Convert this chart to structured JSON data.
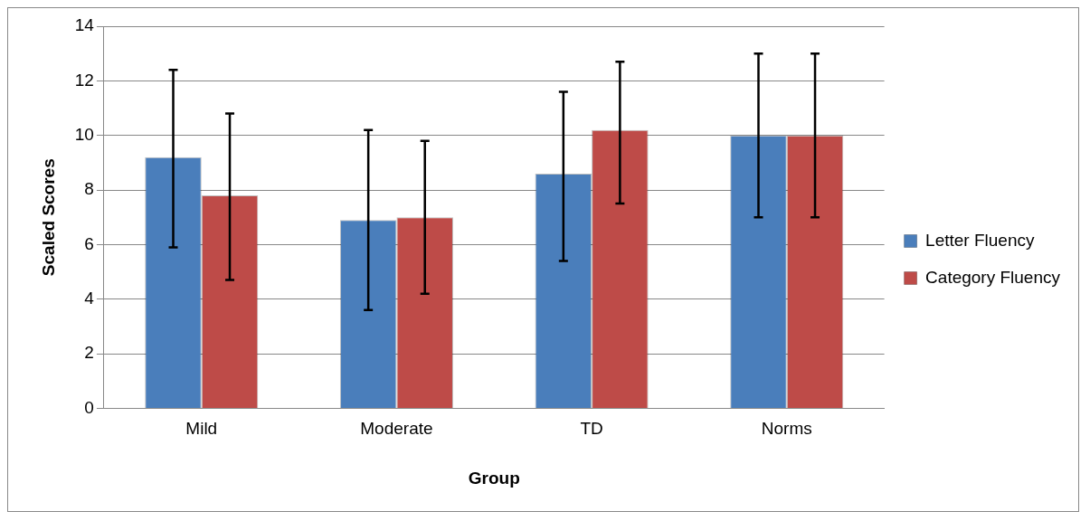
{
  "chart_data": {
    "type": "bar",
    "xlabel": "Group",
    "ylabel": "Scaled Scores",
    "categories": [
      "Mild",
      "Moderate",
      "TD",
      "Norms"
    ],
    "series": [
      {
        "name": "Letter Fluency",
        "color": "#4a7ebb",
        "values": [
          9.2,
          6.9,
          8.6,
          10
        ],
        "errors": [
          [
            5.9,
            12.4
          ],
          [
            3.6,
            10.2
          ],
          [
            5.4,
            11.6
          ],
          [
            7,
            13
          ]
        ]
      },
      {
        "name": "Category Fluency",
        "color": "#be4b48",
        "values": [
          7.8,
          7.0,
          10.2,
          10
        ],
        "errors": [
          [
            4.7,
            10.8
          ],
          [
            4.2,
            9.8
          ],
          [
            7.5,
            12.7
          ],
          [
            7,
            13
          ]
        ]
      }
    ],
    "ylim": [
      0,
      14
    ],
    "yticks": [
      0,
      2,
      4,
      6,
      8,
      10,
      12,
      14
    ],
    "grid": "y",
    "legend": "right"
  }
}
